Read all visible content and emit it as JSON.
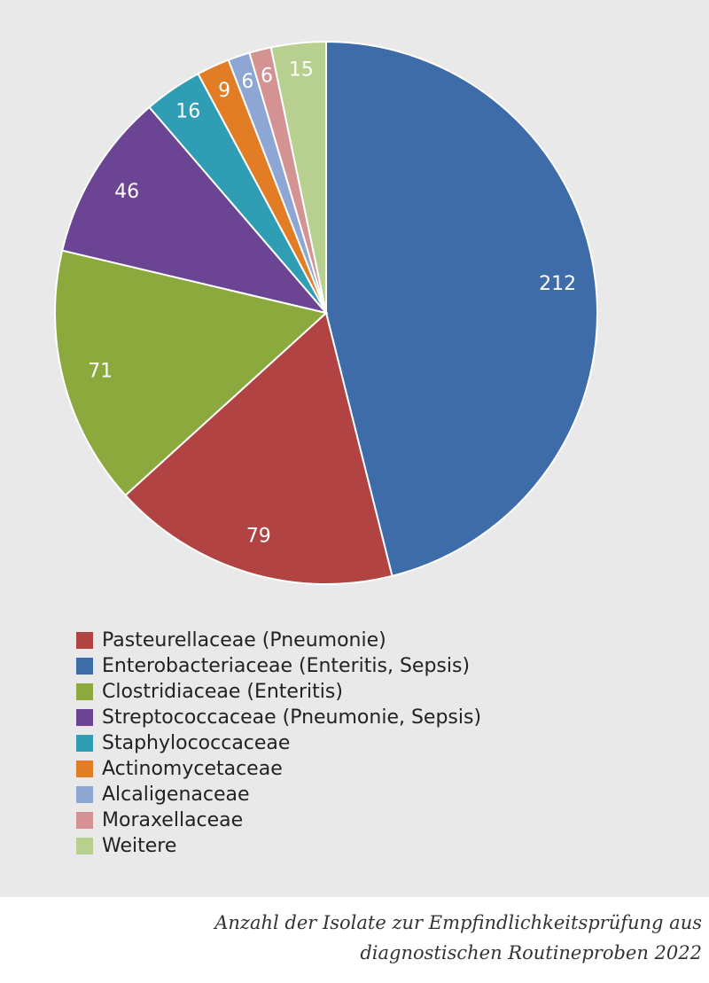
{
  "chart_data": {
    "type": "pie",
    "start_angle_deg": 0,
    "direction": "clockwise",
    "slices": [
      {
        "label": "Enterobacteriaceae (Enteritis, Sepsis)",
        "value": 212,
        "color": "#3d6ca8"
      },
      {
        "label": "Pasteurellaceae (Pneumonie)",
        "value": 79,
        "color": "#b14343"
      },
      {
        "label": "Clostridiaceae (Enteritis)",
        "value": 71,
        "color": "#8ba93d"
      },
      {
        "label": "Streptococcaceae (Pneumonie, Sepsis)",
        "value": 46,
        "color": "#6b4493"
      },
      {
        "label": "Staphylococcaceae",
        "value": 16,
        "color": "#2f9db3"
      },
      {
        "label": "Actinomycetaceae",
        "value": 9,
        "color": "#e27d25"
      },
      {
        "label": "Alcaligenaceae",
        "value": 6,
        "color": "#8ea6d3"
      },
      {
        "label": "Moraxellaceae",
        "value": 6,
        "color": "#d59293"
      },
      {
        "label": "Weitere",
        "value": 15,
        "color": "#b7cf8f"
      }
    ],
    "legend_order": [
      "Pasteurellaceae (Pneumonie)",
      "Enterobacteriaceae (Enteritis, Sepsis)",
      "Clostridiaceae (Enteritis)",
      "Streptococcaceae (Pneumonie, Sepsis)",
      "Staphylococcaceae",
      "Actinomycetaceae",
      "Alcaligenaceae",
      "Moraxellaceae",
      "Weitere"
    ],
    "legend_placement": "bottom-left"
  },
  "caption": {
    "line1": "Anzahl der Isolate zur Empfindlichkeitsprüfung aus",
    "line2": "diagnostischen Routineproben 2022"
  }
}
